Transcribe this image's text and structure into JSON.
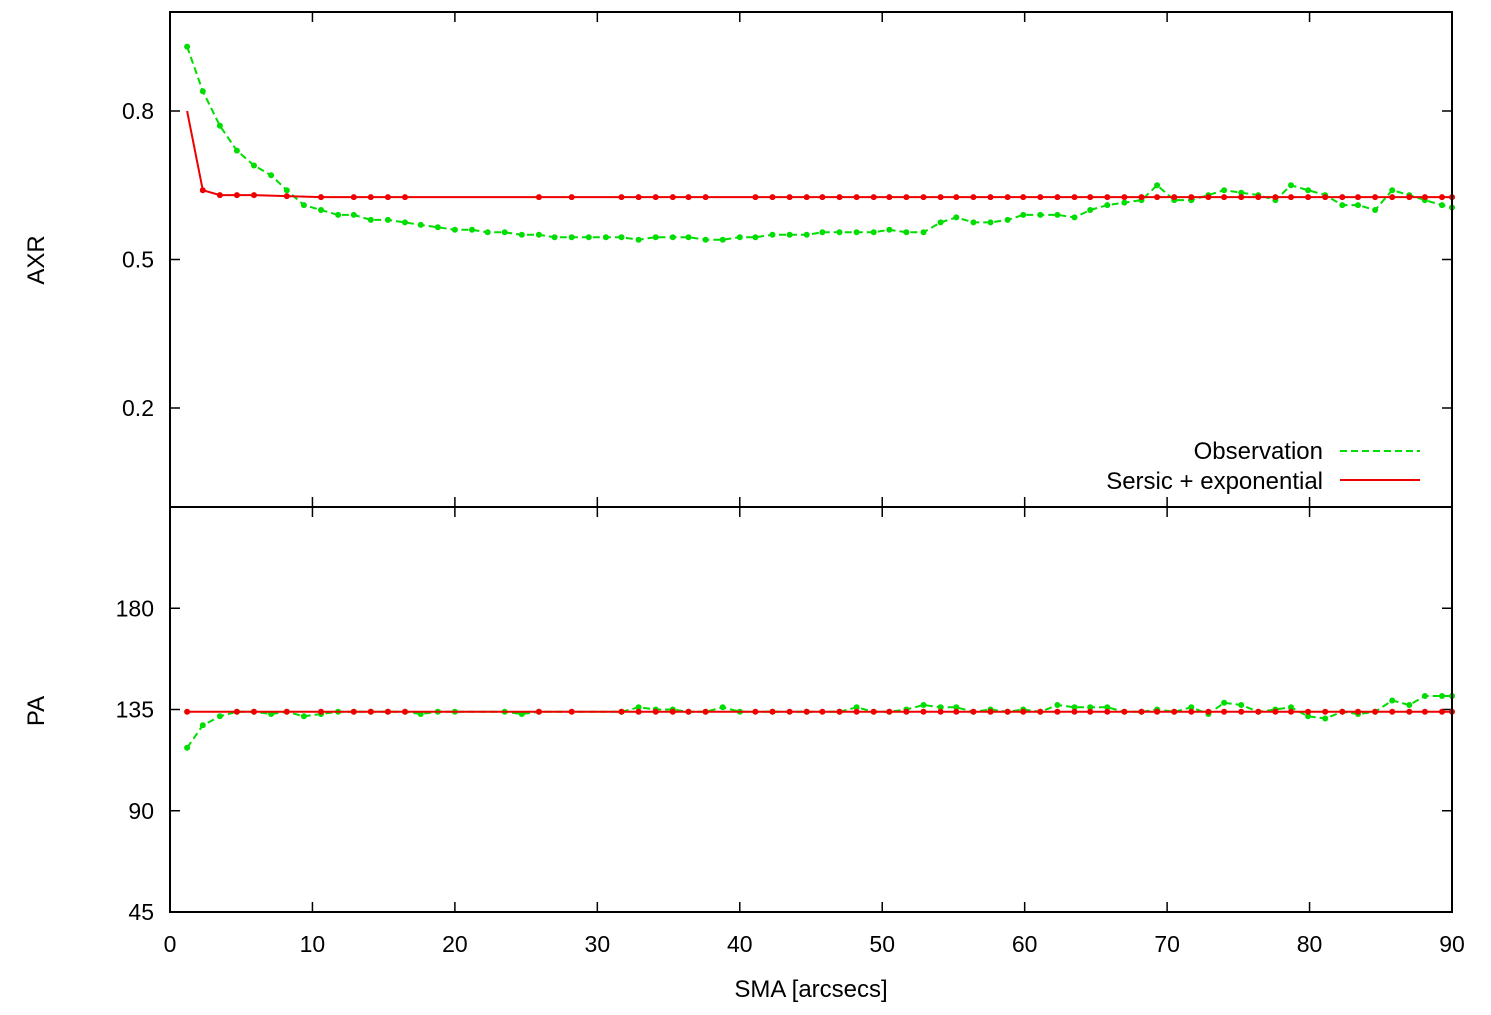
{
  "chart_data": [
    {
      "type": "line",
      "panel": "top",
      "ylabel": "AXR",
      "xlabel": "",
      "xlim": [
        0,
        90
      ],
      "ylim": [
        0.0,
        1.0
      ],
      "yticks": [
        0.2,
        0.5,
        0.8
      ],
      "ytick_labels": [
        "0.2",
        "0.5",
        "0.8"
      ],
      "xticks": [
        0,
        10,
        20,
        30,
        40,
        50,
        60,
        70,
        80,
        90
      ],
      "legend_position": "bottom-right",
      "grid": false,
      "series": [
        {
          "name": "Observation",
          "color": "#00dd00",
          "style": "dashed",
          "x": [
            1.2,
            2.3,
            3.5,
            4.7,
            5.9,
            7.1,
            8.2,
            9.4,
            10.6,
            11.8,
            12.9,
            14.1,
            15.3,
            16.5,
            17.6,
            18.8,
            20.0,
            21.2,
            22.3,
            23.5,
            24.7,
            25.9,
            27.0,
            28.2,
            29.4,
            30.6,
            31.7,
            32.9,
            34.1,
            35.3,
            36.4,
            37.6,
            38.8,
            40.0,
            41.1,
            42.3,
            43.5,
            44.7,
            45.8,
            47.0,
            48.2,
            49.4,
            50.5,
            51.7,
            52.9,
            54.1,
            55.2,
            56.4,
            57.6,
            58.8,
            59.9,
            61.1,
            62.3,
            63.5,
            64.6,
            65.8,
            67.0,
            68.2,
            69.3,
            70.5,
            71.7,
            72.9,
            74.0,
            75.2,
            76.4,
            77.6,
            78.7,
            79.9,
            81.1,
            82.3,
            83.4,
            84.6,
            85.8,
            87.0,
            88.1,
            89.3,
            90.0
          ],
          "values": [
            0.93,
            0.84,
            0.77,
            0.72,
            0.69,
            0.67,
            0.64,
            0.61,
            0.6,
            0.59,
            0.59,
            0.58,
            0.58,
            0.575,
            0.57,
            0.565,
            0.56,
            0.56,
            0.555,
            0.555,
            0.55,
            0.55,
            0.545,
            0.545,
            0.545,
            0.545,
            0.545,
            0.54,
            0.545,
            0.545,
            0.545,
            0.54,
            0.54,
            0.545,
            0.545,
            0.55,
            0.55,
            0.55,
            0.555,
            0.555,
            0.555,
            0.555,
            0.56,
            0.555,
            0.555,
            0.575,
            0.585,
            0.575,
            0.575,
            0.58,
            0.59,
            0.59,
            0.59,
            0.585,
            0.6,
            0.61,
            0.615,
            0.62,
            0.65,
            0.62,
            0.62,
            0.63,
            0.64,
            0.635,
            0.63,
            0.62,
            0.65,
            0.64,
            0.63,
            0.61,
            0.61,
            0.6,
            0.64,
            0.63,
            0.62,
            0.61,
            0.605
          ]
        },
        {
          "name": "Sersic + exponential",
          "color": "#ee0000",
          "style": "solid",
          "x": [
            1.2,
            2.3,
            3.5,
            4.7,
            5.9,
            8.2,
            10.6,
            12.9,
            14.1,
            15.3,
            16.5,
            25.9,
            28.2,
            31.7,
            32.9,
            34.1,
            35.3,
            36.4,
            37.6,
            41.1,
            42.3,
            43.5,
            44.7,
            45.8,
            47.0,
            48.2,
            49.4,
            50.5,
            51.7,
            52.9,
            54.1,
            55.2,
            56.4,
            57.6,
            58.8,
            59.9,
            61.1,
            62.3,
            63.5,
            64.6,
            65.8,
            67.0,
            68.2,
            69.3,
            70.5,
            71.7,
            72.9,
            74.0,
            75.2,
            76.4,
            77.6,
            78.7,
            79.9,
            81.1,
            82.3,
            83.4,
            84.6,
            85.8,
            87.0,
            88.1,
            89.3,
            90.0
          ],
          "values": [
            0.8,
            0.64,
            0.63,
            0.63,
            0.63,
            0.628,
            0.626,
            0.626,
            0.626,
            0.626,
            0.626,
            0.626,
            0.626,
            0.626,
            0.626,
            0.626,
            0.626,
            0.626,
            0.626,
            0.626,
            0.626,
            0.626,
            0.626,
            0.626,
            0.626,
            0.626,
            0.626,
            0.626,
            0.626,
            0.626,
            0.626,
            0.626,
            0.626,
            0.626,
            0.626,
            0.626,
            0.626,
            0.626,
            0.626,
            0.626,
            0.626,
            0.626,
            0.626,
            0.626,
            0.626,
            0.626,
            0.626,
            0.626,
            0.626,
            0.626,
            0.626,
            0.626,
            0.626,
            0.626,
            0.626,
            0.626,
            0.626,
            0.626,
            0.626,
            0.626,
            0.626,
            0.626
          ]
        }
      ]
    },
    {
      "type": "line",
      "panel": "bottom",
      "ylabel": "PA",
      "xlabel": "SMA [arcsecs]",
      "xlim": [
        0,
        90
      ],
      "ylim": [
        45,
        225
      ],
      "yticks": [
        45,
        90,
        135,
        180
      ],
      "ytick_labels": [
        "45",
        "90",
        "135",
        "180"
      ],
      "xticks": [
        0,
        10,
        20,
        30,
        40,
        50,
        60,
        70,
        80,
        90
      ],
      "xtick_labels": [
        "0",
        "10",
        "20",
        "30",
        "40",
        "50",
        "60",
        "70",
        "80",
        "90"
      ],
      "grid": false,
      "series": [
        {
          "name": "Observation",
          "color": "#00dd00",
          "style": "dashed",
          "x": [
            1.2,
            2.3,
            3.5,
            4.7,
            5.9,
            7.1,
            8.2,
            9.4,
            10.6,
            11.8,
            12.9,
            14.1,
            15.3,
            16.5,
            17.6,
            18.8,
            20.0,
            23.5,
            24.7,
            25.9,
            31.7,
            32.9,
            34.1,
            35.3,
            36.4,
            37.6,
            38.8,
            40.0,
            42.3,
            44.7,
            47.0,
            48.2,
            49.4,
            50.5,
            51.7,
            52.9,
            54.1,
            55.2,
            56.4,
            57.6,
            58.8,
            59.9,
            61.1,
            62.3,
            63.5,
            64.6,
            65.8,
            67.0,
            68.2,
            69.3,
            70.5,
            71.7,
            72.9,
            74.0,
            75.2,
            76.4,
            77.6,
            78.7,
            79.9,
            81.1,
            82.3,
            83.4,
            84.6,
            85.8,
            87.0,
            88.1,
            89.3,
            90.0
          ],
          "values": [
            118,
            128,
            132,
            134,
            134,
            133,
            134,
            132,
            133,
            134,
            134,
            134,
            134,
            134,
            133,
            134,
            134,
            134,
            133,
            134,
            134,
            136,
            135,
            135,
            134,
            134,
            136,
            134,
            134,
            134,
            134,
            136,
            134,
            134,
            135,
            137,
            136,
            136,
            134,
            135,
            134,
            135,
            134,
            137,
            136,
            136,
            136,
            134,
            134,
            135,
            134,
            136,
            133,
            138,
            137,
            134,
            135,
            136,
            132,
            131,
            134,
            133,
            134,
            139,
            137,
            141,
            141,
            141
          ]
        },
        {
          "name": "Sersic + exponential",
          "color": "#ee0000",
          "style": "solid",
          "x": [
            1.2,
            4.7,
            5.9,
            8.2,
            10.6,
            12.9,
            14.1,
            15.3,
            16.5,
            25.9,
            28.2,
            31.7,
            32.9,
            34.1,
            35.3,
            36.4,
            37.6,
            41.1,
            42.3,
            43.5,
            44.7,
            45.8,
            47.0,
            48.2,
            49.4,
            50.5,
            51.7,
            52.9,
            54.1,
            55.2,
            56.4,
            57.6,
            58.8,
            59.9,
            61.1,
            62.3,
            63.5,
            64.6,
            65.8,
            67.0,
            68.2,
            69.3,
            70.5,
            71.7,
            72.9,
            74.0,
            75.2,
            76.4,
            77.6,
            78.7,
            79.9,
            81.1,
            82.3,
            83.4,
            84.6,
            85.8,
            87.0,
            88.1,
            89.3,
            90.0
          ],
          "values": [
            134,
            134,
            134,
            134,
            134,
            134,
            134,
            134,
            134,
            134,
            134,
            134,
            134,
            134,
            134,
            134,
            134,
            134,
            134,
            134,
            134,
            134,
            134,
            134,
            134,
            134,
            134,
            134,
            134,
            134,
            134,
            134,
            134,
            134,
            134,
            134,
            134,
            134,
            134,
            134,
            134,
            134,
            134,
            134,
            134,
            134,
            134,
            134,
            134,
            134,
            134,
            134,
            134,
            134,
            134,
            134,
            134,
            134,
            134,
            134
          ]
        }
      ]
    }
  ]
}
